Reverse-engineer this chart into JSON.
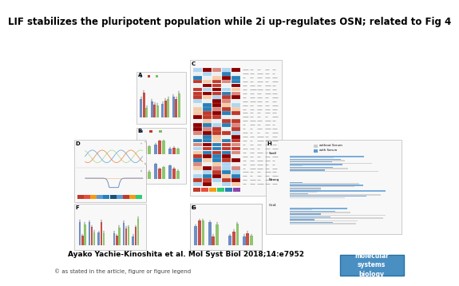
{
  "title": "LIF stabilizes the pluripotent population while 2i up-regulates OSN; related to Fig 4",
  "citation": "Ayako Yachie-Kinoshita et al. Mol Syst Biol 2018;14:e7952",
  "footnote": "© as stated in the article, figure or figure legend",
  "title_fontsize": 8.5,
  "citation_fontsize": 6.5,
  "footnote_fontsize": 5.0,
  "bg_color": "#ffffff",
  "logo_bg": "#4a8fc2",
  "logo_text": "molecular\nsystems\nbiology",
  "logo_text_color": "#ffffff",
  "logo_fontsize": 5.5,
  "panel_label_fontsize": 5,
  "panel_edge": "#aaaaaa",
  "panel_face": "#f8f8f8",
  "bar_colors_main": [
    "#5b7fbe",
    "#c0392b",
    "#7fbe5b"
  ],
  "bar_colors_alt": [
    "#5b9bd5",
    "#ed7d31",
    "#a9d18e",
    "#ff6666",
    "#9b59b6",
    "#f1c40f"
  ],
  "heatmap_colors": [
    "#8b0000",
    "#c0392b",
    "#e74c3c",
    "#ecf0f1",
    "#ecf0f1",
    "#2980b9",
    "#1a5276"
  ],
  "grad_colors": [
    "#c0392b",
    "#e74c3c",
    "#5b9bd5",
    "#2980b9",
    "#1a5276"
  ],
  "line_colors": [
    "#5b9bd5",
    "#ed7d31",
    "#a9d18e"
  ],
  "logo_border": "#2471a3"
}
